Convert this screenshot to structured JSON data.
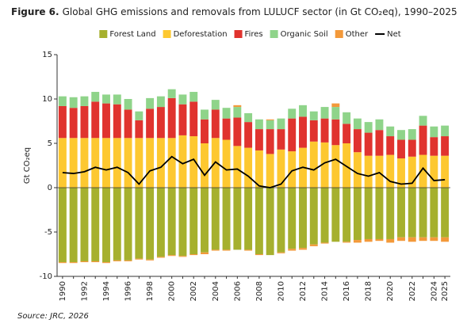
{
  "chart_data": {
    "type": "bar",
    "title_label": "Figure 6.",
    "title": "Global GHG emissions and removals from LULUCF sector (in Gt CO₂eq), 1990–2025",
    "y_label": "Gt CO₂eq",
    "source": "Source: JRC, 2026",
    "categories": [
      "1990",
      null,
      "1992",
      null,
      "1994",
      null,
      "1996",
      null,
      "1998",
      null,
      "2000",
      null,
      "2002",
      null,
      "2004",
      null,
      "2006",
      null,
      "2008",
      null,
      "2010",
      null,
      "2012",
      null,
      "2014",
      null,
      "2016",
      null,
      "2018",
      null,
      "2020",
      null,
      "2022",
      null,
      "2024",
      "2025"
    ],
    "ylim": [
      -10,
      15
    ],
    "yticks": [
      15,
      10,
      5,
      0,
      -5,
      -10
    ],
    "series": [
      {
        "name": "Forest Land",
        "color": "#a6b02e",
        "type": "bar",
        "values": [
          -8.4,
          -8.4,
          -8.3,
          -8.3,
          -8.4,
          -8.2,
          -8.2,
          -8.0,
          -8.1,
          -7.8,
          -7.6,
          -7.7,
          -7.5,
          -7.3,
          -7.0,
          -7.0,
          -7.0,
          -7.0,
          -7.5,
          -7.6,
          -7.3,
          -6.9,
          -6.8,
          -6.4,
          -6.2,
          -6.1,
          -6.1,
          -5.9,
          -5.8,
          -5.8,
          -5.8,
          -5.6,
          -5.6,
          -5.6,
          -5.6,
          -5.6
        ]
      },
      {
        "name": "Deforestation",
        "color": "#fdc830",
        "type": "bar",
        "values": [
          5.6,
          5.6,
          5.6,
          5.6,
          5.6,
          5.6,
          5.6,
          5.6,
          5.6,
          5.6,
          5.6,
          5.9,
          5.8,
          5.0,
          5.6,
          5.4,
          4.7,
          4.5,
          4.2,
          3.8,
          4.3,
          4.1,
          4.5,
          5.2,
          5.1,
          4.8,
          5.0,
          4.0,
          3.6,
          3.6,
          3.7,
          3.3,
          3.5,
          3.7,
          3.6,
          3.6
        ]
      },
      {
        "name": "Fires",
        "color": "#e0332e",
        "type": "bar",
        "values": [
          3.6,
          3.4,
          3.6,
          4.1,
          3.9,
          3.8,
          3.2,
          2.0,
          3.3,
          3.5,
          4.5,
          3.5,
          3.9,
          2.7,
          3.2,
          2.4,
          3.2,
          2.9,
          2.4,
          2.8,
          2.3,
          3.7,
          3.5,
          2.4,
          2.7,
          2.9,
          2.2,
          2.6,
          2.6,
          2.9,
          2.1,
          2.1,
          1.9,
          3.3,
          2.1,
          2.2
        ]
      },
      {
        "name": "Organic Soil",
        "color": "#8fd48a",
        "type": "bar",
        "values": [
          1.1,
          1.2,
          1.1,
          1.1,
          1.0,
          1.1,
          1.2,
          1.0,
          1.2,
          1.2,
          1.0,
          1.1,
          1.1,
          1.1,
          1.1,
          1.2,
          1.2,
          1.0,
          1.1,
          1.0,
          1.2,
          1.1,
          1.3,
          1.0,
          1.3,
          1.4,
          1.3,
          1.2,
          1.2,
          1.2,
          1.1,
          1.1,
          1.2,
          1.1,
          1.2,
          1.2
        ]
      },
      {
        "name": "Other",
        "color": "#f3993a",
        "type": "bar",
        "values": [
          -0.1,
          -0.1,
          -0.1,
          -0.1,
          -0.1,
          -0.1,
          -0.1,
          -0.1,
          -0.1,
          -0.1,
          -0.1,
          -0.1,
          -0.1,
          -0.2,
          -0.1,
          -0.1,
          0.2,
          -0.1,
          -0.1,
          0.1,
          -0.1,
          -0.2,
          -0.2,
          -0.2,
          -0.1,
          0.4,
          -0.1,
          -0.3,
          -0.3,
          -0.2,
          -0.4,
          -0.4,
          -0.5,
          -0.4,
          -0.4,
          -0.5
        ]
      },
      {
        "name": "Net",
        "color": "#000000",
        "type": "line",
        "values": [
          1.7,
          1.6,
          1.8,
          2.3,
          2.0,
          2.3,
          1.7,
          0.4,
          1.9,
          2.3,
          3.5,
          2.7,
          3.2,
          1.4,
          2.9,
          2.0,
          2.1,
          1.3,
          0.2,
          0.0,
          0.4,
          1.9,
          2.3,
          2.0,
          2.8,
          3.2,
          2.4,
          1.6,
          1.3,
          1.7,
          0.7,
          0.4,
          0.5,
          2.2,
          0.8,
          0.9
        ]
      }
    ]
  }
}
